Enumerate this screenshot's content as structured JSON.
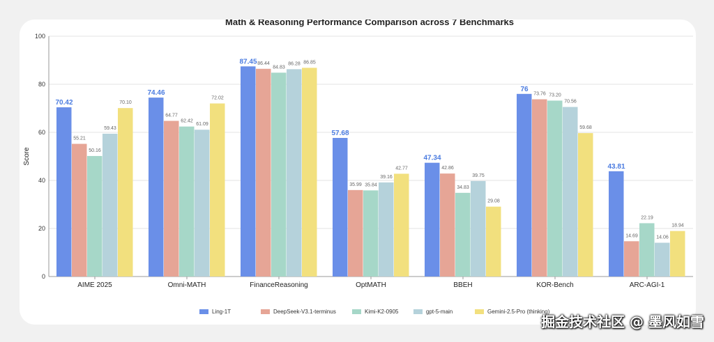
{
  "colors": {
    "series": [
      "#6a8fe8",
      "#e6a596",
      "#a6d7c8",
      "#b5d2db",
      "#f2e07e"
    ],
    "grid": "#e3e3e3"
  },
  "chart_data": {
    "type": "bar",
    "title": "Math & Reasoning Performance Comparison across 7 Benchmarks",
    "xlabel": "",
    "ylabel": "Score",
    "ylim": [
      0,
      100
    ],
    "yticks": [
      0,
      20,
      40,
      60,
      80,
      100
    ],
    "grid": true,
    "legend_position": "bottom",
    "categories": [
      "AIME 2025",
      "Omni-MATH",
      "FinanceReasoning",
      "OptMATH",
      "BBEH",
      "KOR-Bench",
      "ARC-AGI-1"
    ],
    "series": [
      {
        "name": "Ling-1T",
        "values": [
          70.42,
          74.46,
          87.45,
          57.68,
          47.34,
          76,
          43.81
        ],
        "labels": [
          "70.42",
          "74.46",
          "87.45",
          "57.68",
          "47.34",
          "76",
          "43.81"
        ],
        "highlight": true
      },
      {
        "name": "DeepSeek-V3.1-terminus",
        "values": [
          55.21,
          64.77,
          86.44,
          35.99,
          42.86,
          73.76,
          14.69
        ],
        "labels": [
          "55.21",
          "64.77",
          "86.44",
          "35.99",
          "42.86",
          "73.76",
          "14.69"
        ]
      },
      {
        "name": "Kimi-K2-0905",
        "values": [
          50.16,
          62.42,
          84.83,
          35.84,
          34.83,
          73.2,
          22.19
        ],
        "labels": [
          "50.16",
          "62.42",
          "84.83",
          "35.84",
          "34.83",
          "73.20",
          "22.19"
        ]
      },
      {
        "name": "gpt-5-main",
        "values": [
          59.43,
          61.09,
          86.28,
          39.16,
          39.75,
          70.56,
          14.06
        ],
        "labels": [
          "59.43",
          "61.09",
          "86.28",
          "39.16",
          "39.75",
          "70.56",
          "14.06"
        ]
      },
      {
        "name": "Gemini-2.5-Pro (thinking)",
        "values": [
          70.1,
          72.02,
          86.85,
          42.77,
          29.08,
          59.68,
          18.94
        ],
        "labels": [
          "70.10",
          "72.02",
          "86.85",
          "42.77",
          "29.08",
          "59.68",
          "18.94"
        ]
      }
    ]
  },
  "watermark": "掘金技术社区 @ 墨风如雪"
}
